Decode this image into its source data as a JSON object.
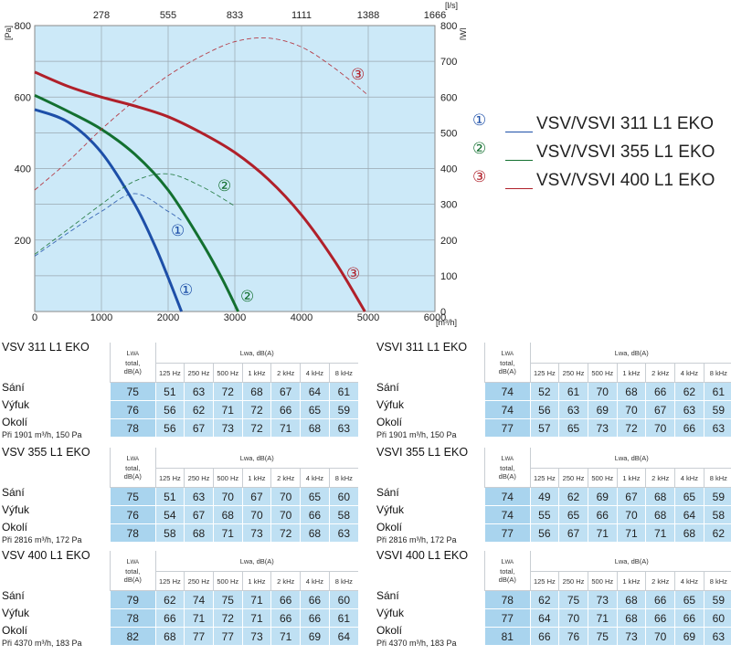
{
  "chart_data": {
    "type": "line",
    "x_bottom": {
      "unit": "[m³/h]",
      "range": [
        0,
        6000
      ],
      "ticks": [
        "0",
        "1000",
        "2000",
        "3000",
        "4000",
        "5000",
        "6000"
      ]
    },
    "x_top": {
      "unit": "[l/s]",
      "ticks": [
        "278",
        "555",
        "833",
        "1111",
        "1388",
        "1666"
      ]
    },
    "y_left": {
      "unit": "[Pa]",
      "range": [
        0,
        800
      ],
      "ticks": [
        "200",
        "400",
        "600",
        "800"
      ]
    },
    "y_right": {
      "unit": "[W]",
      "range": [
        0,
        800
      ],
      "ticks": [
        "0",
        "100",
        "200",
        "300",
        "400",
        "500",
        "600",
        "700",
        "800"
      ]
    },
    "grid": true,
    "series": [
      {
        "name": "VSV/VSVI  311 L1 EKO",
        "marker": "①",
        "color": "#1d4fa8",
        "kind": "pressure",
        "axis": "Pa",
        "x": [
          0,
          500,
          1000,
          1500,
          1800,
          2000,
          2200
        ],
        "y": [
          565,
          530,
          445,
          300,
          185,
          95,
          0
        ]
      },
      {
        "name": "VSV/VSVI  355 L1 EKO",
        "marker": "②",
        "color": "#137030",
        "kind": "pressure",
        "axis": "Pa",
        "x": [
          0,
          500,
          1000,
          1500,
          2000,
          2500,
          2800,
          3050
        ],
        "y": [
          605,
          560,
          510,
          440,
          340,
          195,
          95,
          0
        ]
      },
      {
        "name": "VSV/VSVI  400 L1 EKO",
        "marker": "③",
        "color": "#b0202a",
        "kind": "pressure",
        "axis": "Pa",
        "x": [
          0,
          500,
          1000,
          1500,
          2000,
          2500,
          3000,
          3500,
          4000,
          4500,
          4950
        ],
        "y": [
          670,
          630,
          600,
          575,
          545,
          500,
          445,
          370,
          270,
          140,
          0
        ]
      },
      {
        "name": "VSV/VSVI  311 L1 EKO",
        "marker": "①",
        "color": "#1d4fa8",
        "kind": "power",
        "axis": "W",
        "x": [
          0,
          500,
          1000,
          1500,
          2000,
          2200
        ],
        "y": [
          155,
          220,
          280,
          330,
          280,
          255
        ]
      },
      {
        "name": "VSV/VSVI  355 L1 EKO",
        "marker": "②",
        "color": "#137030",
        "kind": "power",
        "axis": "W",
        "x": [
          0,
          500,
          1000,
          1500,
          2000,
          2500,
          3000
        ],
        "y": [
          160,
          230,
          300,
          365,
          385,
          350,
          295
        ]
      },
      {
        "name": "VSV/VSVI  400 L1 EKO",
        "marker": "③",
        "color": "#b0202a",
        "kind": "power",
        "axis": "W",
        "x": [
          0,
          500,
          1000,
          1500,
          2000,
          2500,
          3000,
          3500,
          4000,
          4500,
          5000
        ],
        "y": [
          340,
          420,
          510,
          590,
          660,
          715,
          755,
          765,
          740,
          680,
          605
        ]
      }
    ]
  },
  "curve_markers": {
    "s1_pressure": "①",
    "s2_pressure": "②",
    "s3_pressure": "③",
    "s1_power": "①",
    "s2_power": "②",
    "s3_power": "③"
  },
  "legend": [
    {
      "num": "①",
      "label": "VSV/VSVI  311 L1 EKO",
      "color": "#1d4fa8"
    },
    {
      "num": "②",
      "label": "VSV/VSVI  355 L1 EKO",
      "color": "#137030"
    },
    {
      "num": "③",
      "label": "VSV/VSVI  400 L1 EKO",
      "color": "#b0202a"
    }
  ],
  "table_header": {
    "lwa_total_top": "L",
    "lwa_total_sub": "WA",
    "lwa_total_bottom1": "total,",
    "lwa_total_bottom2": "dB(A)",
    "lwa_group": "Lwa, dB(A)",
    "bands": [
      "125 Hz",
      "250 Hz",
      "500 Hz",
      "1 kHz",
      "2 kHz",
      "4 kHz",
      "8 kHz"
    ]
  },
  "row_labels": [
    "Sání",
    "Výfuk",
    "Okolí"
  ],
  "tables": [
    {
      "title": "VSV 311 L1 EKO",
      "note": "Při 1901 m³/h, 150 Pa",
      "rows": [
        [
          75,
          51,
          63,
          72,
          68,
          67,
          64,
          61
        ],
        [
          76,
          56,
          62,
          71,
          72,
          66,
          65,
          59
        ],
        [
          78,
          56,
          67,
          73,
          72,
          71,
          68,
          63
        ]
      ]
    },
    {
      "title": "VSVI 311 L1 EKO",
      "note": "Při 1901 m³/h, 150 Pa",
      "rows": [
        [
          74,
          52,
          61,
          70,
          68,
          66,
          62,
          61
        ],
        [
          74,
          56,
          63,
          69,
          70,
          67,
          63,
          59
        ],
        [
          77,
          57,
          65,
          73,
          72,
          70,
          66,
          63
        ]
      ]
    },
    {
      "title": "VSV 355 L1 EKO",
      "note": "Při 2816 m³/h, 172 Pa",
      "rows": [
        [
          75,
          51,
          63,
          70,
          67,
          70,
          65,
          60
        ],
        [
          76,
          54,
          67,
          68,
          70,
          70,
          66,
          58
        ],
        [
          78,
          58,
          68,
          71,
          73,
          72,
          68,
          63
        ]
      ]
    },
    {
      "title": "VSVI 355 L1 EKO",
      "note": "Při 2816 m³/h, 172 Pa",
      "rows": [
        [
          74,
          49,
          62,
          69,
          67,
          68,
          65,
          59
        ],
        [
          74,
          55,
          65,
          66,
          70,
          68,
          64,
          58
        ],
        [
          77,
          56,
          67,
          71,
          71,
          71,
          68,
          62
        ]
      ]
    },
    {
      "title": "VSV 400 L1 EKO",
      "note": "Při 4370 m³/h, 183 Pa",
      "rows": [
        [
          79,
          62,
          74,
          75,
          71,
          66,
          66,
          60
        ],
        [
          78,
          66,
          71,
          72,
          71,
          66,
          66,
          61
        ],
        [
          82,
          68,
          77,
          77,
          73,
          71,
          69,
          64
        ]
      ]
    },
    {
      "title": "VSVI 400 L1 EKO",
      "note": "Při 4370 m³/h, 183 Pa",
      "rows": [
        [
          78,
          62,
          75,
          73,
          68,
          66,
          65,
          59
        ],
        [
          77,
          64,
          70,
          71,
          68,
          66,
          66,
          60
        ],
        [
          81,
          66,
          76,
          75,
          73,
          70,
          69,
          63
        ]
      ]
    }
  ]
}
